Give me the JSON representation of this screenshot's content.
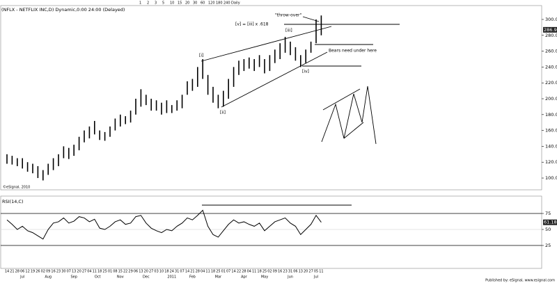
{
  "header": {
    "title": "(NFLX - NETFLIX INC,D) Dynamic,0:00 24:00 (Delayed)",
    "toolbar": [
      "1",
      "2",
      "3",
      "5",
      "10",
      "15",
      "20",
      "30",
      "60",
      "120",
      "180",
      "240",
      "Daily"
    ]
  },
  "chart_data": [
    {
      "type": "ohlc",
      "last_price_label": "286.93",
      "last_price": 286.93,
      "categories": [
        "14",
        "21",
        "28",
        "06",
        "12",
        "19",
        "26",
        "02",
        "09",
        "16",
        "23",
        "30",
        "07",
        "13",
        "20",
        "27",
        "04",
        "11",
        "18",
        "25",
        "01",
        "08",
        "15",
        "22",
        "29",
        "06",
        "13",
        "20",
        "27",
        "03",
        "10",
        "18",
        "24",
        "31",
        "07",
        "14",
        "21",
        "28",
        "04",
        "11",
        "18",
        "25",
        "01",
        "07",
        "14",
        "22",
        "28",
        "04",
        "11",
        "18",
        "25",
        "02",
        "09",
        "16",
        "23",
        "31",
        "06",
        "13",
        "20",
        "27",
        "05",
        "11"
      ],
      "months": [
        "Jul",
        "Aug",
        "Sep",
        "Oct",
        "Nov",
        "Dec",
        "2011",
        "Feb",
        "Mar",
        "Apr",
        "May",
        "Jun",
        "Jul"
      ],
      "series": [
        {
          "name": "High",
          "color": "#000000",
          "values": [
            130,
            128,
            125,
            125,
            120,
            118,
            115,
            110,
            118,
            125,
            130,
            140,
            138,
            142,
            152,
            160,
            165,
            172,
            160,
            158,
            165,
            175,
            180,
            178,
            185,
            200,
            212,
            205,
            200,
            198,
            195,
            198,
            192,
            198,
            205,
            222,
            225,
            240,
            250,
            230,
            215,
            205,
            210,
            225,
            240,
            248,
            250,
            252,
            250,
            255,
            250,
            255,
            262,
            270,
            278,
            272,
            265,
            255,
            262,
            272,
            300,
            305
          ]
        },
        {
          "name": "Low",
          "color": "#000000",
          "values": [
            118,
            117,
            115,
            112,
            108,
            106,
            100,
            97,
            104,
            110,
            115,
            125,
            124,
            128,
            135,
            145,
            150,
            155,
            148,
            147,
            152,
            160,
            165,
            168,
            170,
            180,
            190,
            192,
            185,
            185,
            180,
            182,
            182,
            185,
            188,
            205,
            210,
            215,
            225,
            205,
            195,
            188,
            190,
            200,
            215,
            230,
            235,
            238,
            235,
            240,
            232,
            235,
            245,
            250,
            258,
            255,
            248,
            240,
            245,
            258,
            270,
            280
          ]
        }
      ],
      "ylim": [
        86,
        317.5
      ],
      "yticks": [
        {
          "value": 100,
          "label": "100.00"
        },
        {
          "value": 120,
          "label": "120.00"
        },
        {
          "value": 140,
          "label": "140.00"
        },
        {
          "value": 160,
          "label": "160.00"
        },
        {
          "value": 180,
          "label": "180.00"
        },
        {
          "value": 200,
          "label": "200.00"
        },
        {
          "value": 220,
          "label": "220.00"
        },
        {
          "value": 240,
          "label": "240.00"
        },
        {
          "value": 260,
          "label": "260.00"
        },
        {
          "value": 280,
          "label": "280.00"
        },
        {
          "value": 300,
          "label": "300.00"
        }
      ],
      "annotations": [
        "[v] = [iii] x .618",
        "\"throw-over\"",
        "[i]",
        "[ii]",
        "[iii]",
        "[iv]",
        "Bears need under here"
      ],
      "copyright": "©eSignal, 2010"
    },
    {
      "type": "line",
      "title": "RSI(14,C)",
      "last_value_label": "61.18",
      "last_value": 61.18,
      "series": [
        {
          "name": "RSI",
          "color": "#000000",
          "values": [
            65,
            58,
            50,
            55,
            48,
            45,
            40,
            35,
            50,
            60,
            62,
            68,
            60,
            63,
            70,
            68,
            62,
            66,
            52,
            50,
            55,
            62,
            65,
            58,
            60,
            70,
            72,
            60,
            52,
            48,
            45,
            50,
            48,
            55,
            60,
            68,
            65,
            72,
            80,
            55,
            42,
            38,
            48,
            58,
            65,
            60,
            62,
            58,
            55,
            60,
            48,
            55,
            62,
            65,
            68,
            60,
            55,
            42,
            50,
            58,
            72,
            61.18
          ]
        }
      ],
      "ylim": [
        0,
        100
      ],
      "yticks": [
        25,
        50,
        75
      ]
    }
  ],
  "footer": {
    "text": "Published by: eSignal, www.esignal.com"
  }
}
